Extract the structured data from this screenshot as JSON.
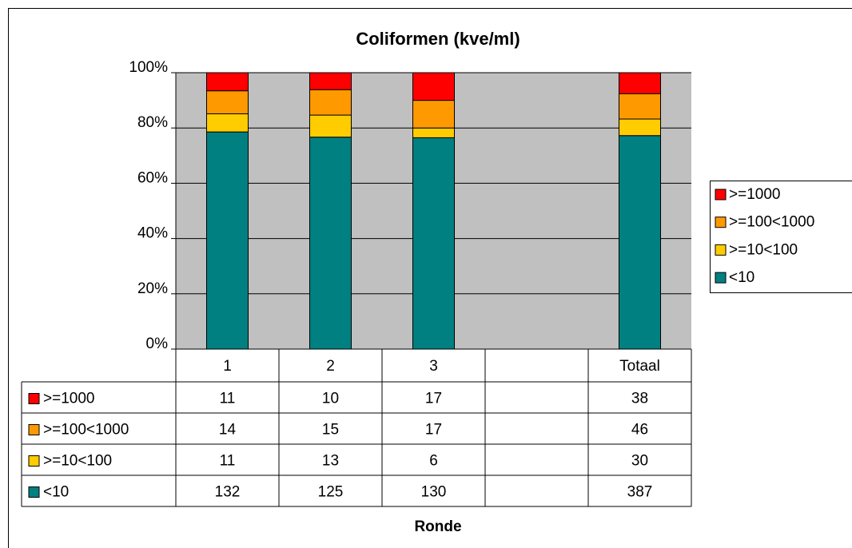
{
  "chart_data": {
    "type": "stacked_bar_100",
    "title": "Coliformen (kve/ml)",
    "x_label": "Ronde",
    "categories": [
      "1",
      "2",
      "3",
      null,
      "Totaal"
    ],
    "series": [
      {
        "name": ">=1000",
        "color": "#ff0000",
        "values": [
          11,
          10,
          17,
          null,
          38
        ]
      },
      {
        "name": ">=100<1000",
        "color": "#ff9900",
        "values": [
          14,
          15,
          17,
          null,
          46
        ]
      },
      {
        "name": ">=10<100",
        "color": "#ffcc00",
        "values": [
          11,
          13,
          6,
          null,
          30
        ]
      },
      {
        "name": "<10",
        "color": "#008080",
        "values": [
          132,
          125,
          130,
          null,
          387
        ]
      }
    ],
    "ylim": [
      0,
      100
    ],
    "yticks": [
      {
        "value": 0,
        "label": "0%"
      },
      {
        "value": 20,
        "label": "20%"
      },
      {
        "value": 40,
        "label": "40%"
      },
      {
        "value": 60,
        "label": "60%"
      },
      {
        "value": 80,
        "label": "80%"
      },
      {
        "value": 100,
        "label": "100%"
      }
    ],
    "grid": true,
    "plot_background": "#c0c0c0",
    "legend": "right",
    "data_table": true
  }
}
